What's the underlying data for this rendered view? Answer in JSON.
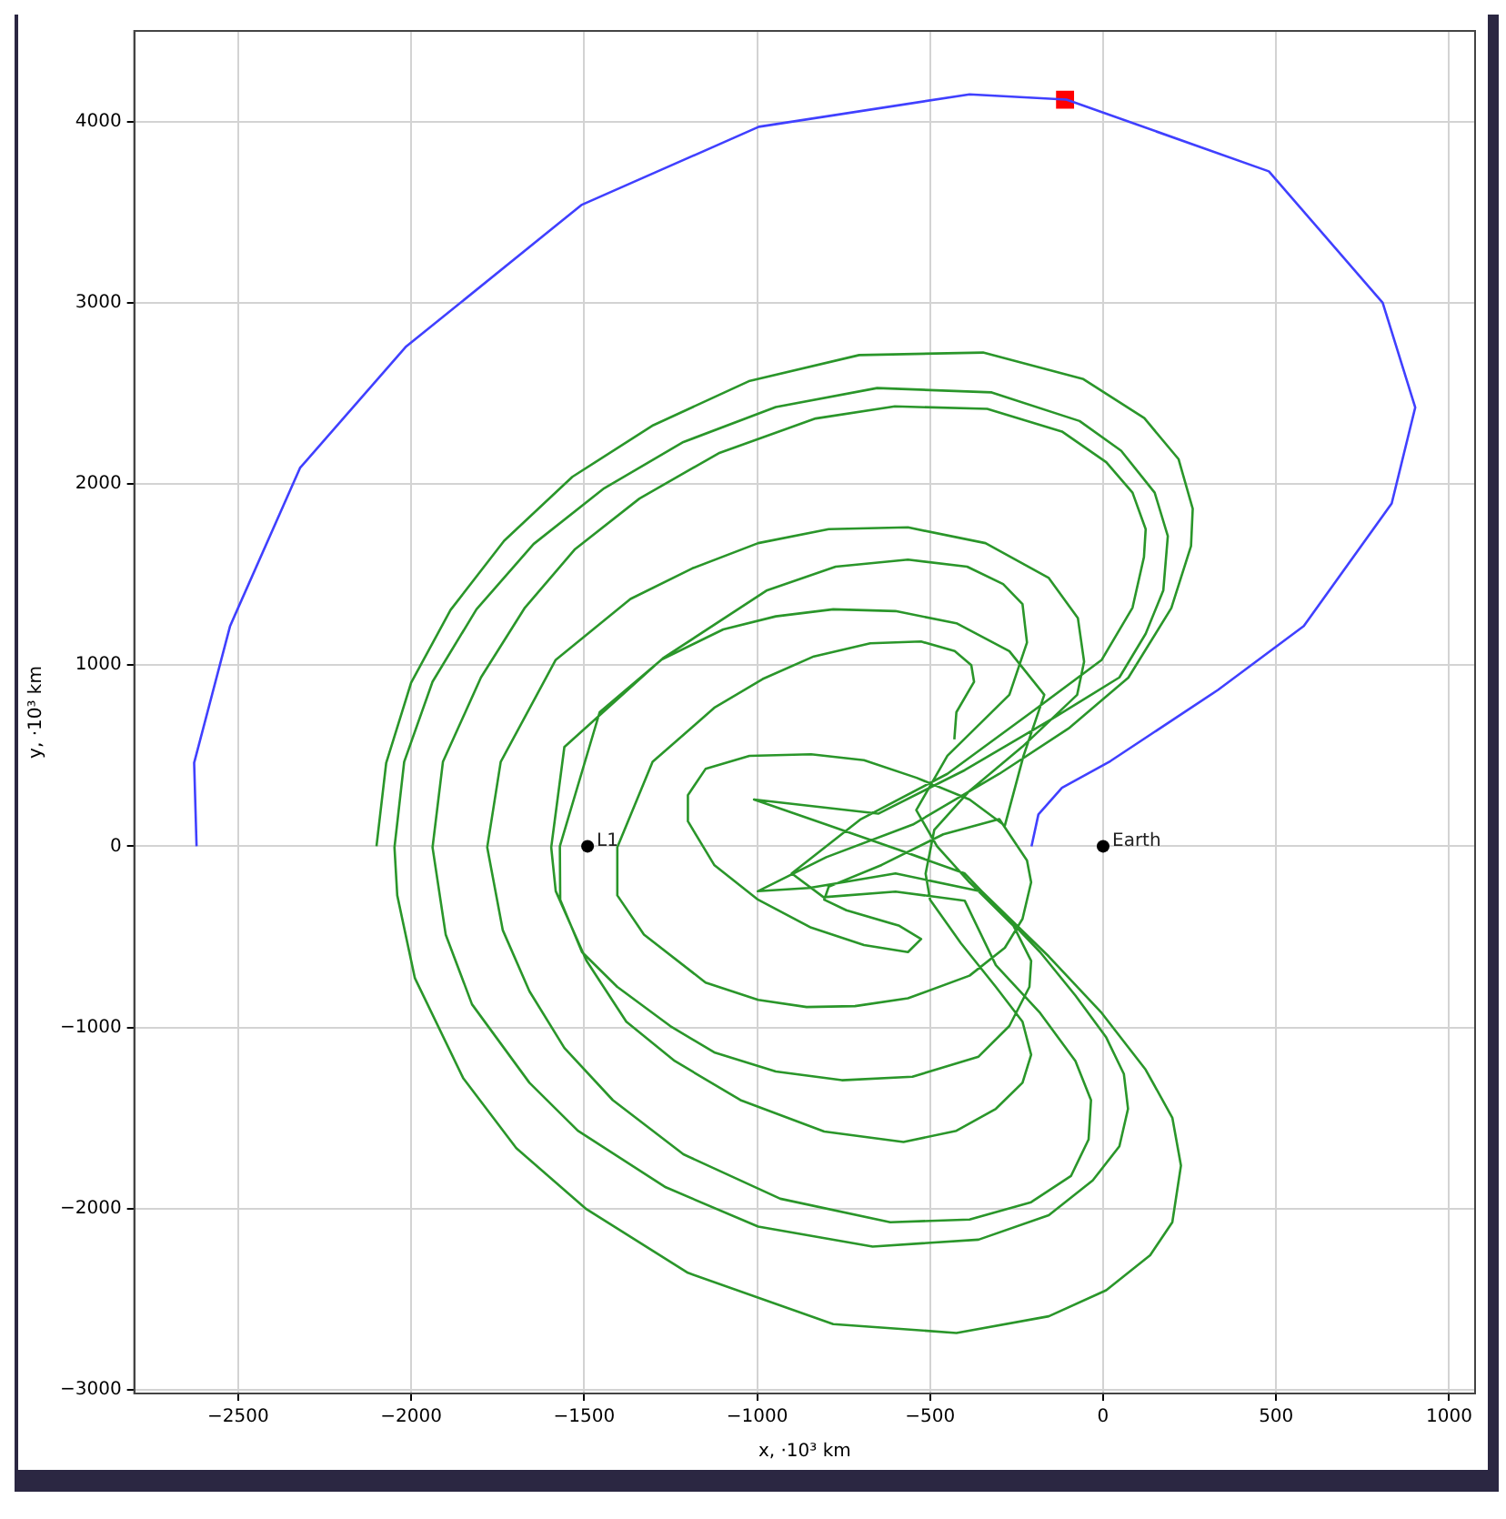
{
  "chart_data": {
    "type": "line",
    "xlabel": "x, ·10³ km",
    "ylabel": "y, ·10³ km",
    "xlim": [
      -2800,
      1075
    ],
    "ylim": [
      -3020,
      4500
    ],
    "xticks": [
      -2500,
      -2000,
      -1500,
      -1000,
      -500,
      0,
      500,
      1000
    ],
    "yticks": [
      -3000,
      -2000,
      -1000,
      0,
      1000,
      2000,
      3000,
      4000
    ],
    "grid": true,
    "series": [
      {
        "color": "#4040ff",
        "x": [
          -2620,
          -2627,
          -2523,
          -2321,
          -2016,
          -1508,
          -995,
          -386,
          -106,
          479,
          808,
          902,
          834,
          580,
          332,
          21,
          -119,
          -187,
          -207
        ],
        "values": [
          0,
          461,
          1216,
          2088,
          2755,
          3539,
          3971,
          4150,
          4121,
          3725,
          3000,
          2422,
          1892,
          1216,
          863,
          470,
          323,
          176,
          0
        ]
      },
      {
        "color": "#2a962a",
        "x": [
          -2100,
          -2072,
          -2000,
          -1886,
          -1731,
          -1534,
          -1300,
          -1021,
          -705,
          -347,
          -57,
          119,
          218,
          259,
          254,
          197,
          73,
          -100,
          -300,
          -550,
          -800,
          -998,
          -850,
          -600,
          -350,
          -157,
          -4,
          123,
          200,
          225,
          200,
          136,
          9,
          -157,
          -424,
          -780,
          -1200,
          -1493,
          -1696,
          -1849,
          -1989,
          -2040,
          -2048,
          -2020,
          -1938,
          -1811,
          -1646,
          -1442,
          -1213,
          -946,
          -653,
          -322,
          -68,
          52,
          149,
          187,
          174,
          123,
          47,
          -150,
          -400,
          -650,
          -1009,
          -800,
          -589,
          -400,
          -182,
          -80,
          9,
          60,
          72,
          47,
          -30,
          -157,
          -360,
          -666,
          -997,
          -1264,
          -1518,
          -1658,
          -1824,
          -1900,
          -1938,
          -1908,
          -1798,
          -1671,
          -1526,
          -1340,
          -1111,
          -831,
          -602,
          -335,
          -119,
          9,
          85,
          123,
          118,
          85,
          -4,
          -200,
          -450,
          -700,
          -900,
          -808,
          -600,
          -400,
          -310,
          -182,
          -80,
          -35,
          -42,
          -93,
          -208,
          -386,
          -615,
          -933,
          -1213,
          -1417,
          -1557,
          -1658,
          -1735,
          -1780,
          -1741,
          -1582,
          -1366,
          -1187,
          -997,
          -793,
          -564,
          -340,
          -157,
          -73,
          -55,
          -75,
          -233,
          -386,
          -488,
          -513,
          -500,
          -411,
          -310,
          -233,
          -208,
          -233,
          -310,
          -424,
          -577,
          -806,
          -1048,
          -1238,
          -1378,
          -1493,
          -1582,
          -1595,
          -1557,
          -1272,
          -971,
          -773,
          -564,
          -393,
          -289,
          -233,
          -220,
          -271,
          -450,
          -540,
          -480,
          -386,
          -322,
          -259,
          -208,
          -213,
          -271,
          -360,
          -551,
          -755,
          -946,
          -1124,
          -1251,
          -1404,
          -1506,
          -1569,
          -1570,
          -1455,
          -1277,
          -1098,
          -946,
          -780,
          -600,
          -424,
          -271,
          -170,
          -230,
          -284,
          -386,
          -539,
          -691,
          -844,
          -1022,
          -1149,
          -1200,
          -1200,
          -1124,
          -997,
          -844,
          -691,
          -564,
          -526,
          -589,
          -742,
          -806,
          -793,
          -640,
          -462,
          -300,
          -220,
          -208,
          -233,
          -284,
          -386,
          -564,
          -717,
          -857,
          -997,
          -1149,
          -1327,
          -1404,
          -1404,
          -1302,
          -1124,
          -984,
          -836,
          -673,
          -526,
          -429,
          -381,
          -373,
          -424,
          -430
        ],
        "values": [
          0,
          460,
          902,
          1304,
          1686,
          2039,
          2324,
          2569,
          2711,
          2725,
          2578,
          2363,
          2137,
          1863,
          1657,
          1314,
          931,
          650,
          400,
          120,
          -60,
          -248,
          -230,
          -150,
          -250,
          -608,
          -920,
          -1233,
          -1498,
          -1762,
          -2075,
          -2257,
          -2450,
          -2594,
          -2686,
          -2637,
          -2354,
          -2003,
          -1666,
          -1281,
          -728,
          -271,
          -6,
          466,
          908,
          1308,
          1668,
          1976,
          2231,
          2424,
          2529,
          2505,
          2347,
          2183,
          1952,
          1712,
          1413,
          1173,
          932,
          700,
          420,
          180,
          258,
          120,
          -21,
          -150,
          -584,
          -824,
          -1055,
          -1257,
          -1449,
          -1656,
          -1844,
          -2036,
          -2171,
          -2209,
          -2099,
          -1882,
          -1570,
          -1305,
          -872,
          -487,
          -6,
          466,
          932,
          1317,
          1640,
          1919,
          2169,
          2361,
          2428,
          2414,
          2289,
          2120,
          1952,
          1750,
          1596,
          1317,
          1029,
          750,
          400,
          150,
          -150,
          -281,
          -250,
          -300,
          -656,
          -920,
          -1185,
          -1401,
          -1618,
          -1820,
          -1964,
          -2060,
          -2075,
          -1945,
          -1700,
          -1401,
          -1113,
          -800,
          -463,
          -6,
          466,
          1029,
          1365,
          1534,
          1673,
          1750,
          1760,
          1673,
          1481,
          1260,
          1019,
          836,
          550,
          306,
          90,
          -151,
          -295,
          -535,
          -776,
          -968,
          -1151,
          -1305,
          -1449,
          -1570,
          -1632,
          -1574,
          -1401,
          -1185,
          -968,
          -632,
          -247,
          -6,
          548,
          1038,
          1413,
          1543,
          1582,
          1543,
          1447,
          1337,
          1125,
          836,
          500,
          200,
          0,
          -199,
          -319,
          -439,
          -632,
          -776,
          -992,
          -1161,
          -1272,
          -1291,
          -1243,
          -1137,
          -992,
          -776,
          -584,
          -295,
          0,
          740,
          1029,
          1197,
          1269,
          1308,
          1298,
          1231,
          1077,
          836,
          500,
          114,
          258,
          378,
          475,
          508,
          499,
          427,
          282,
          138,
          -103,
          -295,
          -449,
          -545,
          -584,
          -512,
          -439,
          -353,
          -295,
          -223,
          -103,
          66,
          150,
          -78,
          -199,
          -401,
          -560,
          -714,
          -839,
          -882,
          -887,
          -848,
          -752,
          -487,
          -271,
          -6,
          466,
          764,
          923,
          1048,
          1120,
          1130,
          1077,
          1000,
          908,
          740,
          590
        ]
      },
      {
        "type": "scatter",
        "marker": "square",
        "color": "#ff0000",
        "x": [
          -110
        ],
        "values": [
          4120
        ]
      },
      {
        "type": "scatter",
        "marker": "circle",
        "color": "#000000",
        "name": "L1",
        "x": [
          -1490
        ],
        "values": [
          0
        ]
      },
      {
        "type": "scatter",
        "marker": "circle",
        "color": "#000000",
        "name": "Earth",
        "x": [
          0
        ],
        "values": [
          0
        ]
      }
    ]
  }
}
